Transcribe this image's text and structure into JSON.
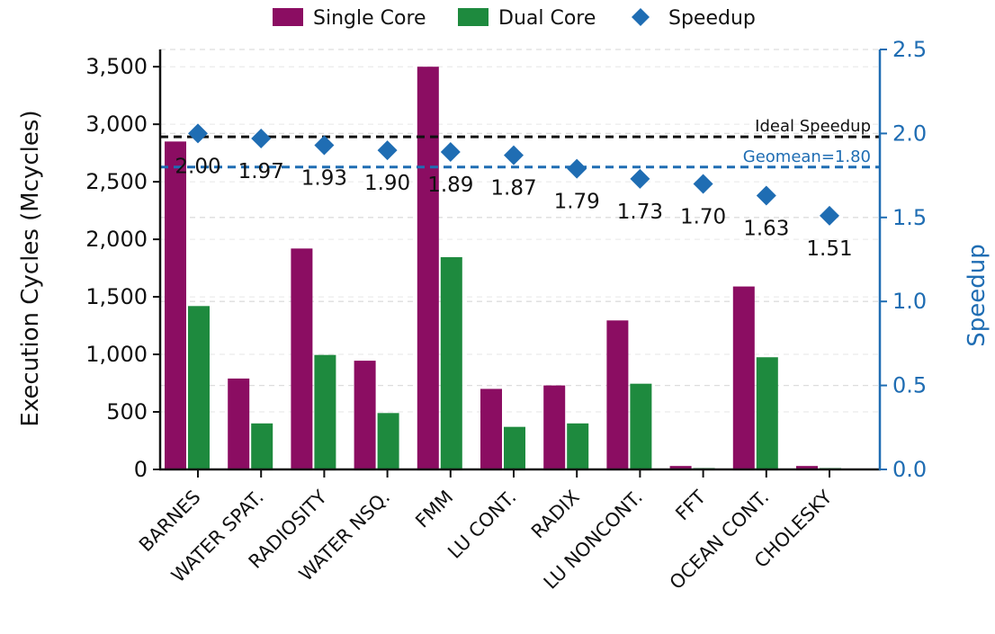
{
  "chart_data": {
    "type": "bar",
    "categories": [
      "BARNES",
      "WATER SPAT.",
      "RADIOSITY",
      "WATER NSQ.",
      "FMM",
      "LU CONT.",
      "RADIX",
      "LU NONCONT.",
      "FFT",
      "OCEAN CONT.",
      "CHOLESKY"
    ],
    "series": [
      {
        "name": "Single Core",
        "axis": "left",
        "kind": "bar",
        "color": "#8b0d62",
        "values": [
          2850,
          790,
          1920,
          945,
          3500,
          700,
          730,
          1295,
          30,
          1590,
          30
        ]
      },
      {
        "name": "Dual Core",
        "axis": "left",
        "kind": "bar",
        "color": "#1e8a3e",
        "values": [
          1420,
          400,
          995,
          490,
          1845,
          370,
          400,
          745,
          12,
          975,
          12
        ]
      },
      {
        "name": "Speedup",
        "axis": "right",
        "kind": "scatter",
        "marker": "diamond",
        "color": "#1f6db3",
        "values": [
          2.0,
          1.97,
          1.93,
          1.9,
          1.89,
          1.87,
          1.79,
          1.73,
          1.7,
          1.63,
          1.51
        ],
        "value_labels": [
          "2.00",
          "1.97",
          "1.93",
          "1.90",
          "1.89",
          "1.87",
          "1.79",
          "1.73",
          "1.70",
          "1.63",
          "1.51"
        ]
      }
    ],
    "ylabel": "Execution Cycles (Mcycles)",
    "ylim": [
      0,
      3650
    ],
    "yticks": [
      0,
      500,
      1000,
      1500,
      2000,
      2500,
      3000,
      3500
    ],
    "ytick_labels": [
      "0",
      "500",
      "1,000",
      "1,500",
      "2,000",
      "2,500",
      "3,000",
      "3,500"
    ],
    "y2label": "Speedup",
    "y2lim": [
      0,
      2.5
    ],
    "y2ticks": [
      0,
      0.5,
      1,
      1.5,
      2,
      2.5
    ],
    "y2tick_labels": [
      "0.0",
      "0.5",
      "1.0",
      "1.5",
      "2.0",
      "2.5"
    ],
    "y2color": "#1f6db3",
    "reference_lines": [
      {
        "label": "Ideal Speedup",
        "value": 1.98,
        "axis": "right",
        "color": "#111111",
        "style": "dashed"
      },
      {
        "label": "Geomean=1.80",
        "value": 1.8,
        "axis": "right",
        "color": "#1f6db3",
        "style": "dashed"
      }
    ],
    "legend": {
      "position": "top-center",
      "entries": [
        "Single Core",
        "Dual Core",
        "Speedup"
      ]
    },
    "grid": "horizontal-dashed"
  }
}
